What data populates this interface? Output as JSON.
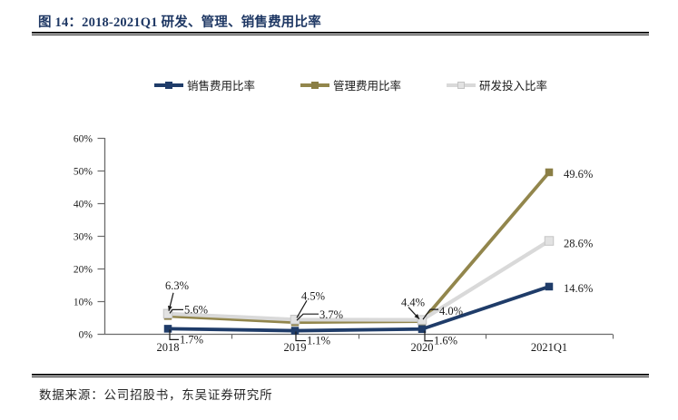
{
  "header": {
    "title": "图 14：2018-2021Q1 研发、管理、销售费用比率"
  },
  "footer": {
    "source": "数据来源：公司招股书，东吴证券研究所"
  },
  "colors": {
    "title_navy": "#1F3864",
    "rule_black": "#1a1a1a",
    "axis_gray": "#6b6b6b",
    "annotation_text": "#1a1a1a"
  },
  "chart_data": {
    "type": "line",
    "title": "2018-2021Q1 研发、管理、销售费用比率",
    "categories": [
      "2018",
      "2019",
      "2020",
      "2021Q1"
    ],
    "series": [
      {
        "name": "销售费用比率",
        "color": "#1F3C69",
        "marker_color": "#1F3C69",
        "values": [
          1.7,
          1.1,
          1.6,
          14.6
        ],
        "labels": [
          "1.7%",
          "1.1%",
          "1.6%",
          "14.6%"
        ]
      },
      {
        "name": "管理费用比率",
        "color": "#92864C",
        "marker_color": "#8A7E45",
        "values": [
          5.6,
          3.7,
          4.0,
          49.6
        ],
        "labels": [
          "5.6%",
          "3.7%",
          "4.0%",
          "49.6%"
        ]
      },
      {
        "name": "研发投入比率",
        "color": "#D9D9D9",
        "marker_color": "#E2E2E2",
        "marker_border": "#C4C4C4",
        "values": [
          6.3,
          4.5,
          4.4,
          28.6
        ],
        "labels": [
          "6.3%",
          "4.5%",
          "4.4%",
          "28.6%"
        ]
      }
    ],
    "xlabel": "",
    "ylabel": "",
    "ylim": [
      0,
      60
    ],
    "ytick_step": 10,
    "yticks": [
      "0%",
      "10%",
      "20%",
      "30%",
      "40%",
      "50%",
      "60%"
    ],
    "grid": false,
    "legend_position": "top"
  }
}
